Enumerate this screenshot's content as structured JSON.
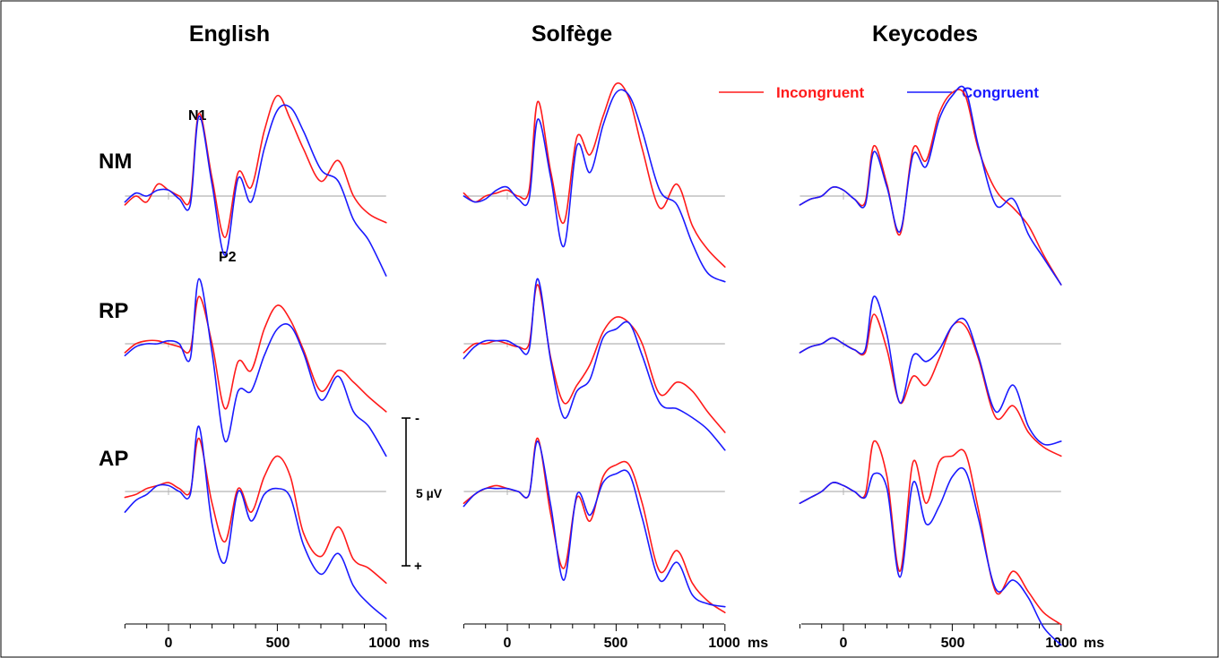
{
  "figure": {
    "columns": [
      "English",
      "Solfège",
      "Keycodes"
    ],
    "rows": [
      "NM",
      "RP",
      "AP"
    ],
    "peak_labels": {
      "n1": "N1",
      "p2": "P2"
    },
    "x_ticks": [
      "0",
      "500",
      "1000"
    ],
    "x_unit": "ms",
    "scale_bar": {
      "label": "5 µV",
      "neg": "-",
      "pos": "+"
    }
  },
  "legend": {
    "position": "top-right",
    "incongruent": {
      "label": "Incongruent",
      "color": "#ff1a1a"
    },
    "congruent": {
      "label": "Congruent",
      "color": "#1a1aff"
    }
  },
  "chart_data": {
    "type": "line",
    "x_range_ms": [
      -200,
      1000
    ],
    "x_ticks_ms": [
      0,
      500,
      1000
    ],
    "grid": false,
    "note": "Voltage values in µV read against the 5 µV scale bar; negative plotted upward",
    "series_order": [
      "Incongruent",
      "Congruent"
    ],
    "x_ms": [
      -200,
      -150,
      -100,
      -50,
      0,
      50,
      100,
      140,
      200,
      260,
      320,
      380,
      440,
      500,
      560,
      620,
      700,
      780,
      850,
      920,
      1000
    ],
    "panels": [
      {
        "column": "English",
        "row": "NM",
        "incongruent": [
          0.3,
          0.0,
          0.2,
          -0.4,
          -0.2,
          0.0,
          0.1,
          -2.8,
          -0.6,
          1.4,
          -0.8,
          -0.3,
          -2.2,
          -3.4,
          -2.6,
          -1.6,
          -0.5,
          -1.2,
          0.0,
          0.6,
          0.9
        ],
        "congruent": [
          0.2,
          -0.1,
          0.0,
          -0.2,
          -0.2,
          0.1,
          0.3,
          -2.7,
          -0.4,
          2.0,
          -0.6,
          0.2,
          -1.6,
          -2.9,
          -3.0,
          -2.2,
          -0.9,
          -0.5,
          0.8,
          1.5,
          2.7
        ]
      },
      {
        "column": "English",
        "row": "RP",
        "incongruent": [
          0.3,
          0.0,
          -0.1,
          -0.1,
          0.0,
          0.1,
          0.2,
          -1.6,
          0.0,
          2.2,
          0.6,
          0.9,
          -0.5,
          -1.3,
          -0.8,
          0.2,
          1.6,
          0.9,
          1.3,
          1.8,
          2.3
        ],
        "congruent": [
          0.4,
          0.1,
          0.0,
          0.0,
          -0.1,
          0.0,
          0.5,
          -2.2,
          0.3,
          3.3,
          1.6,
          1.6,
          0.4,
          -0.5,
          -0.6,
          0.3,
          1.9,
          1.1,
          2.3,
          2.8,
          3.8
        ]
      },
      {
        "column": "English",
        "row": "AP",
        "incongruent": [
          0.2,
          0.1,
          -0.1,
          -0.2,
          -0.3,
          -0.1,
          0.0,
          -1.8,
          0.4,
          1.7,
          -0.1,
          0.7,
          -0.5,
          -1.2,
          -0.5,
          1.4,
          2.2,
          1.2,
          2.3,
          2.6,
          3.1
        ],
        "congruent": [
          0.7,
          0.3,
          0.1,
          -0.2,
          -0.2,
          0.0,
          0.1,
          -2.2,
          1.1,
          2.4,
          0.0,
          1.0,
          0.1,
          -0.1,
          0.2,
          1.8,
          2.8,
          2.1,
          3.2,
          3.8,
          4.3
        ]
      },
      {
        "column": "Solfège",
        "row": "NM",
        "incongruent": [
          -0.1,
          0.2,
          0.0,
          -0.1,
          -0.2,
          0.0,
          -0.2,
          -3.2,
          -0.8,
          0.9,
          -2.0,
          -1.4,
          -2.7,
          -3.8,
          -3.3,
          -1.6,
          0.4,
          -0.4,
          1.0,
          1.8,
          2.4
        ],
        "congruent": [
          0.0,
          0.2,
          0.1,
          -0.2,
          -0.3,
          0.1,
          0.1,
          -2.6,
          -0.6,
          1.7,
          -1.7,
          -0.8,
          -2.4,
          -3.5,
          -3.4,
          -2.2,
          -0.2,
          0.3,
          1.6,
          2.6,
          2.9
        ]
      },
      {
        "column": "Solfège",
        "row": "RP",
        "incongruent": [
          0.3,
          0.0,
          0.0,
          -0.1,
          0.0,
          0.1,
          0.0,
          -2.0,
          0.5,
          2.0,
          1.4,
          0.7,
          -0.4,
          -0.9,
          -0.7,
          0.0,
          1.7,
          1.3,
          1.6,
          2.3,
          3.0
        ],
        "congruent": [
          0.5,
          0.1,
          -0.1,
          -0.1,
          -0.1,
          0.1,
          0.2,
          -2.2,
          0.6,
          2.5,
          1.6,
          1.2,
          -0.2,
          -0.5,
          -0.7,
          0.4,
          2.0,
          2.2,
          2.5,
          2.9,
          3.6
        ]
      },
      {
        "column": "Solfège",
        "row": "AP",
        "incongruent": [
          0.4,
          0.1,
          -0.1,
          -0.2,
          -0.1,
          0.0,
          0.1,
          -1.8,
          0.8,
          2.6,
          0.2,
          1.0,
          -0.5,
          -0.9,
          -0.9,
          0.4,
          2.7,
          2.0,
          3.1,
          3.7,
          4.1
        ],
        "congruent": [
          0.5,
          0.1,
          -0.1,
          -0.1,
          -0.1,
          0.0,
          0.1,
          -1.7,
          0.5,
          3.0,
          0.1,
          0.8,
          -0.3,
          -0.6,
          -0.6,
          0.9,
          3.0,
          2.4,
          3.5,
          3.8,
          3.9
        ]
      },
      {
        "column": "Keycodes",
        "row": "NM",
        "incongruent": [
          0.3,
          0.1,
          0.0,
          -0.3,
          -0.2,
          0.1,
          0.2,
          -1.7,
          -0.4,
          1.3,
          -1.6,
          -1.2,
          -2.8,
          -3.5,
          -3.4,
          -1.6,
          -0.2,
          0.4,
          1.0,
          2.0,
          3.0
        ],
        "congruent": [
          0.3,
          0.1,
          0.0,
          -0.3,
          -0.2,
          0.1,
          0.3,
          -1.5,
          -0.3,
          1.2,
          -1.4,
          -1.0,
          -2.6,
          -3.4,
          -3.6,
          -1.7,
          0.3,
          0.1,
          1.3,
          2.1,
          3.0
        ]
      },
      {
        "column": "Keycodes",
        "row": "RP",
        "incongruent": [
          0.3,
          0.1,
          0.0,
          -0.2,
          0.0,
          0.2,
          0.3,
          -1.0,
          0.2,
          2.0,
          1.1,
          1.4,
          0.5,
          -0.6,
          -0.6,
          0.5,
          2.5,
          2.1,
          3.0,
          3.5,
          3.8
        ],
        "congruent": [
          0.3,
          0.1,
          0.0,
          -0.2,
          0.0,
          0.2,
          0.2,
          -1.6,
          -0.3,
          2.0,
          0.4,
          0.6,
          0.2,
          -0.6,
          -0.8,
          0.4,
          2.3,
          1.4,
          2.8,
          3.4,
          3.3
        ]
      },
      {
        "column": "Keycodes",
        "row": "AP",
        "incongruent": [
          0.4,
          0.2,
          0.0,
          -0.3,
          -0.2,
          0.0,
          0.1,
          -1.7,
          -0.5,
          2.7,
          -1.0,
          0.4,
          -1.0,
          -1.2,
          -1.3,
          0.6,
          3.4,
          2.7,
          3.4,
          4.1,
          4.5
        ],
        "congruent": [
          0.4,
          0.2,
          0.0,
          -0.3,
          -0.2,
          0.0,
          0.2,
          -0.6,
          -0.1,
          2.9,
          -0.3,
          1.1,
          0.5,
          -0.5,
          -0.7,
          0.9,
          3.3,
          3.0,
          3.6,
          4.6,
          5.2
        ]
      }
    ]
  }
}
